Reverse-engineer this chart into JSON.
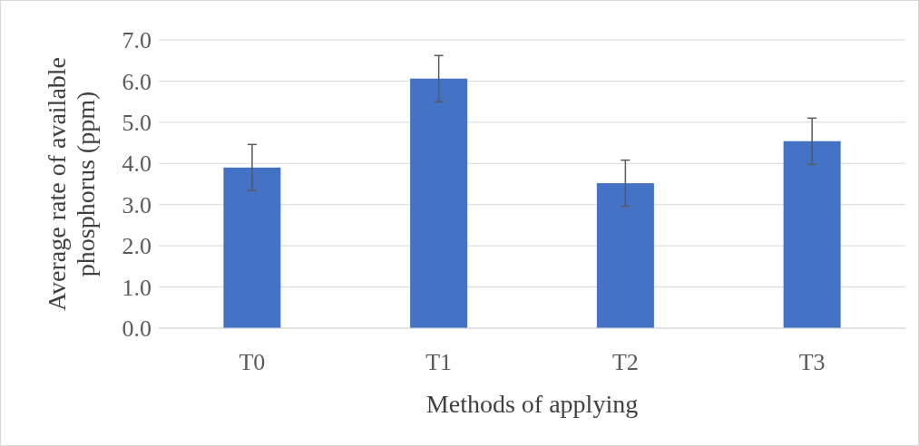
{
  "chart_data": {
    "type": "bar",
    "xlabel": "Methods of applying",
    "ylabel": "Average rate of available phosphorus  (ppm)",
    "categories": [
      "T0",
      "T1",
      "T2",
      "T3"
    ],
    "values": [
      3.9,
      6.06,
      3.52,
      4.54
    ],
    "errors": [
      0.56,
      0.56,
      0.56,
      0.56
    ],
    "color": "#4472c4",
    "ylim": [
      0,
      7
    ],
    "yticks": [
      {
        "value": 0,
        "label": "0.0"
      },
      {
        "value": 1,
        "label": "1.0"
      },
      {
        "value": 2,
        "label": "2.0"
      },
      {
        "value": 3,
        "label": "3.0"
      },
      {
        "value": 4,
        "label": "4.0"
      },
      {
        "value": 5,
        "label": "5.0"
      },
      {
        "value": 6,
        "label": "6.0"
      },
      {
        "value": 7,
        "label": "7.0"
      }
    ],
    "grid": "y"
  }
}
